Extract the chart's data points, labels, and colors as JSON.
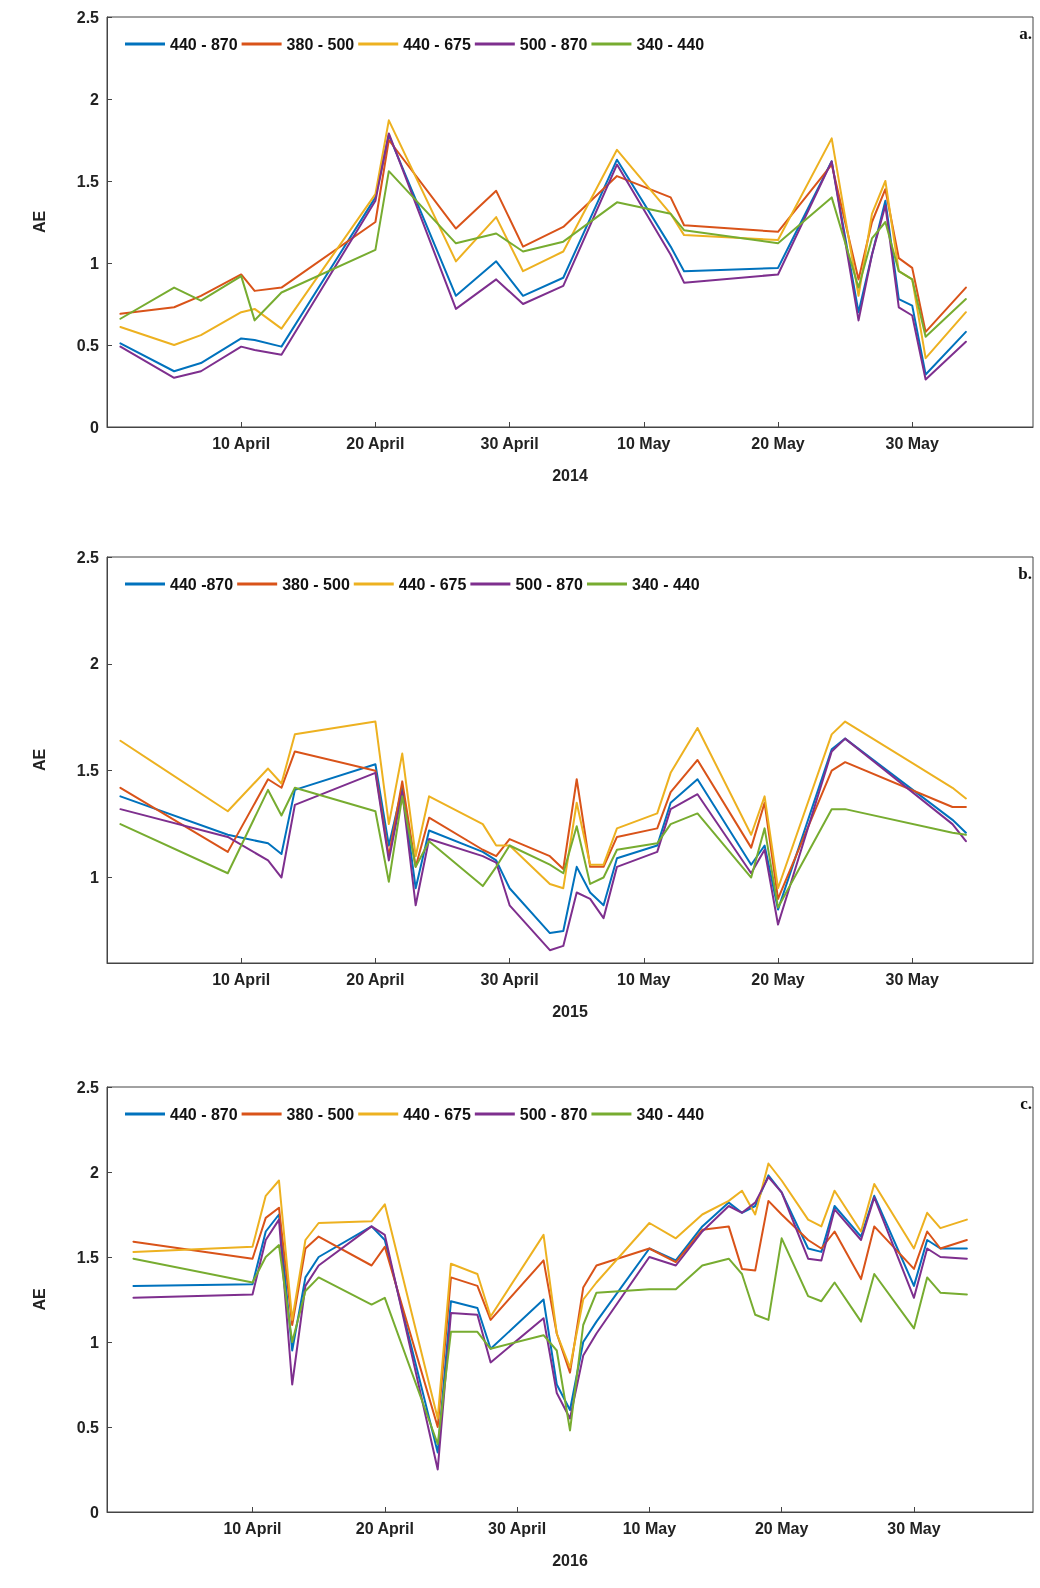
{
  "chart_data": [
    {
      "type": "line",
      "xlabel": "2014",
      "ylabel": "AE",
      "annotations": [
        "a."
      ],
      "legend": "top",
      "grid": false,
      "marker": "none",
      "line_style": "solid",
      "xlim": [
        "2014-03-31",
        "2014-06-08"
      ],
      "xticks": [
        {
          "value": "2014-04-10",
          "label": "10 April"
        },
        {
          "value": "2014-04-20",
          "label": "20 April"
        },
        {
          "value": "2014-04-30",
          "label": "30 April"
        },
        {
          "value": "2014-05-10",
          "label": "10 May"
        },
        {
          "value": "2014-05-20",
          "label": "20 May"
        },
        {
          "value": "2014-05-30",
          "label": "30 May"
        }
      ],
      "ylim": [
        0,
        2.5
      ],
      "yticks": [
        0,
        0.5,
        1,
        1.5,
        2,
        2.5
      ],
      "x": [
        "2014-04-01",
        "2014-04-05",
        "2014-04-07",
        "2014-04-10",
        "2014-04-11",
        "2014-04-13",
        "2014-04-20",
        "2014-04-21",
        "2014-04-26",
        "2014-04-29",
        "2014-05-01",
        "2014-05-04",
        "2014-05-08",
        "2014-05-12",
        "2014-05-13",
        "2014-05-20",
        "2014-05-24",
        "2014-05-26",
        "2014-05-27",
        "2014-05-28",
        "2014-05-29",
        "2014-05-30",
        "2014-05-31",
        "2014-06-03"
      ],
      "series": [
        {
          "name": "440 - 870",
          "color": "#0072bd",
          "values": [
            0.51,
            0.34,
            0.39,
            0.54,
            0.53,
            0.49,
            1.4,
            1.78,
            0.8,
            1.01,
            0.8,
            0.91,
            1.63,
            1.1,
            0.95,
            0.97,
            1.62,
            0.7,
            1.05,
            1.38,
            0.78,
            0.74,
            0.32,
            0.58
          ]
        },
        {
          "name": "380 - 500",
          "color": "#d95319",
          "values": [
            0.69,
            0.73,
            0.8,
            0.93,
            0.83,
            0.85,
            1.25,
            1.75,
            1.21,
            1.44,
            1.1,
            1.22,
            1.53,
            1.4,
            1.23,
            1.19,
            1.6,
            0.9,
            1.25,
            1.45,
            1.03,
            0.97,
            0.58,
            0.85
          ]
        },
        {
          "name": "440 - 675",
          "color": "#edb120",
          "values": [
            0.61,
            0.5,
            0.56,
            0.7,
            0.72,
            0.6,
            1.42,
            1.87,
            1.01,
            1.28,
            0.95,
            1.07,
            1.69,
            1.3,
            1.17,
            1.14,
            1.76,
            0.8,
            1.3,
            1.5,
            0.95,
            0.9,
            0.42,
            0.7
          ]
        },
        {
          "name": "500 - 870",
          "color": "#7e2f8e",
          "values": [
            0.49,
            0.3,
            0.34,
            0.49,
            0.47,
            0.44,
            1.38,
            1.79,
            0.72,
            0.9,
            0.75,
            0.86,
            1.6,
            1.05,
            0.88,
            0.93,
            1.62,
            0.65,
            1.05,
            1.35,
            0.73,
            0.68,
            0.29,
            0.52
          ]
        },
        {
          "name": "340 - 440",
          "color": "#77ac30",
          "values": [
            0.66,
            0.85,
            0.77,
            0.92,
            0.65,
            0.82,
            1.08,
            1.56,
            1.12,
            1.18,
            1.07,
            1.13,
            1.37,
            1.3,
            1.2,
            1.12,
            1.4,
            0.85,
            1.15,
            1.25,
            0.95,
            0.9,
            0.55,
            0.78
          ]
        }
      ]
    },
    {
      "type": "line",
      "xlabel": "2015",
      "ylabel": "AE",
      "annotations": [
        "b."
      ],
      "legend": "top",
      "grid": false,
      "marker": "none",
      "line_style": "solid",
      "xlim": [
        "2015-03-31",
        "2015-06-08"
      ],
      "xticks": [
        {
          "value": "2015-04-10",
          "label": "10 April"
        },
        {
          "value": "2015-04-20",
          "label": "20 April"
        },
        {
          "value": "2015-04-30",
          "label": "30 April"
        },
        {
          "value": "2015-05-10",
          "label": "10 May"
        },
        {
          "value": "2015-05-20",
          "label": "20 May"
        },
        {
          "value": "2015-05-30",
          "label": "30 May"
        }
      ],
      "ylim": [
        0.6,
        2.5
      ],
      "yticks": [
        1,
        1.5,
        2,
        2.5
      ],
      "x": [
        "2015-04-01",
        "2015-04-09",
        "2015-04-12",
        "2015-04-13",
        "2015-04-14",
        "2015-04-20",
        "2015-04-21",
        "2015-04-22",
        "2015-04-23",
        "2015-04-24",
        "2015-04-28",
        "2015-04-29",
        "2015-04-30",
        "2015-05-03",
        "2015-05-04",
        "2015-05-05",
        "2015-05-06",
        "2015-05-07",
        "2015-05-08",
        "2015-05-11",
        "2015-05-12",
        "2015-05-14",
        "2015-05-18",
        "2015-05-19",
        "2015-05-20",
        "2015-05-24",
        "2015-05-25",
        "2015-06-02",
        "2015-06-03"
      ],
      "series": [
        {
          "name": "440 -870",
          "color": "#0072bd",
          "values": [
            1.38,
            1.2,
            1.16,
            1.11,
            1.41,
            1.53,
            1.15,
            1.42,
            0.95,
            1.22,
            1.12,
            1.08,
            0.95,
            0.74,
            0.75,
            1.05,
            0.93,
            0.87,
            1.09,
            1.15,
            1.35,
            1.46,
            1.06,
            1.15,
            0.85,
            1.6,
            1.65,
            1.27,
            1.21
          ]
        },
        {
          "name": "380 - 500",
          "color": "#d95319",
          "values": [
            1.42,
            1.12,
            1.46,
            1.42,
            1.59,
            1.5,
            1.1,
            1.45,
            1.05,
            1.28,
            1.13,
            1.1,
            1.18,
            1.1,
            1.04,
            1.46,
            1.05,
            1.05,
            1.19,
            1.23,
            1.4,
            1.55,
            1.14,
            1.35,
            0.9,
            1.5,
            1.54,
            1.33,
            1.33
          ]
        },
        {
          "name": "440 - 675",
          "color": "#edb120",
          "values": [
            1.64,
            1.31,
            1.51,
            1.44,
            1.67,
            1.73,
            1.25,
            1.58,
            1.1,
            1.38,
            1.25,
            1.15,
            1.15,
            0.97,
            0.95,
            1.35,
            1.06,
            1.06,
            1.23,
            1.3,
            1.49,
            1.7,
            1.2,
            1.38,
            0.95,
            1.67,
            1.73,
            1.42,
            1.37
          ]
        },
        {
          "name": "500 - 870",
          "color": "#7e2f8e",
          "values": [
            1.32,
            1.19,
            1.08,
            1.0,
            1.34,
            1.49,
            1.08,
            1.4,
            0.87,
            1.18,
            1.1,
            1.07,
            0.87,
            0.66,
            0.68,
            0.93,
            0.9,
            0.81,
            1.05,
            1.12,
            1.32,
            1.39,
            1.02,
            1.13,
            0.78,
            1.59,
            1.65,
            1.25,
            1.17
          ]
        },
        {
          "name": "340 - 440",
          "color": "#77ac30",
          "values": [
            1.25,
            1.02,
            1.41,
            1.29,
            1.42,
            1.31,
            0.98,
            1.38,
            1.05,
            1.17,
            0.96,
            1.05,
            1.15,
            1.06,
            1.02,
            1.24,
            0.97,
            1.0,
            1.13,
            1.16,
            1.25,
            1.3,
            1.0,
            1.23,
            0.86,
            1.32,
            1.32,
            1.21,
            1.2
          ]
        }
      ]
    },
    {
      "type": "line",
      "xlabel": "2016",
      "ylabel": "AE",
      "annotations": [
        "c."
      ],
      "legend": "top",
      "grid": false,
      "marker": "none",
      "line_style": "solid",
      "xlim": [
        "2016-03-30",
        "2016-06-08"
      ],
      "xticks": [
        {
          "value": "2016-04-10",
          "label": "10 April"
        },
        {
          "value": "2016-04-20",
          "label": "20 April"
        },
        {
          "value": "2016-04-30",
          "label": "30 April"
        },
        {
          "value": "2016-05-10",
          "label": "10 May"
        },
        {
          "value": "2016-05-20",
          "label": "20 May"
        },
        {
          "value": "2016-05-30",
          "label": "30 May"
        }
      ],
      "ylim": [
        0,
        2.5
      ],
      "yticks": [
        0,
        0.5,
        1,
        1.5,
        2,
        2.5
      ],
      "x": [
        "2016-04-01",
        "2016-04-10",
        "2016-04-11",
        "2016-04-12",
        "2016-04-13",
        "2016-04-14",
        "2016-04-15",
        "2016-04-19",
        "2016-04-20",
        "2016-04-24",
        "2016-04-25",
        "2016-04-27",
        "2016-04-28",
        "2016-05-02",
        "2016-05-03",
        "2016-05-04",
        "2016-05-05",
        "2016-05-06",
        "2016-05-10",
        "2016-05-12",
        "2016-05-14",
        "2016-05-16",
        "2016-05-17",
        "2016-05-18",
        "2016-05-19",
        "2016-05-20",
        "2016-05-22",
        "2016-05-23",
        "2016-05-24",
        "2016-05-26",
        "2016-05-27",
        "2016-05-30",
        "2016-05-31",
        "2016-06-01",
        "2016-06-03"
      ],
      "series": [
        {
          "name": "440 - 870",
          "color": "#0072bd",
          "values": [
            1.33,
            1.34,
            1.65,
            1.75,
            0.95,
            1.38,
            1.5,
            1.68,
            1.6,
            0.35,
            1.24,
            1.2,
            0.96,
            1.25,
            0.75,
            0.6,
            1.0,
            1.12,
            1.55,
            1.48,
            1.68,
            1.82,
            1.76,
            1.8,
            1.98,
            1.88,
            1.55,
            1.53,
            1.8,
            1.62,
            1.86,
            1.33,
            1.6,
            1.55,
            1.55
          ]
        },
        {
          "name": "380 - 500",
          "color": "#d95319",
          "values": [
            1.59,
            1.49,
            1.73,
            1.79,
            1.1,
            1.55,
            1.62,
            1.45,
            1.56,
            0.5,
            1.38,
            1.33,
            1.13,
            1.48,
            1.05,
            0.82,
            1.32,
            1.45,
            1.55,
            1.47,
            1.66,
            1.68,
            1.43,
            1.42,
            1.83,
            1.75,
            1.6,
            1.55,
            1.65,
            1.37,
            1.68,
            1.43,
            1.65,
            1.55,
            1.6
          ]
        },
        {
          "name": "440 - 675",
          "color": "#edb120",
          "values": [
            1.53,
            1.56,
            1.86,
            1.95,
            1.13,
            1.6,
            1.7,
            1.71,
            1.81,
            0.55,
            1.46,
            1.4,
            1.15,
            1.63,
            1.05,
            0.85,
            1.25,
            1.35,
            1.7,
            1.61,
            1.75,
            1.83,
            1.89,
            1.75,
            2.05,
            1.95,
            1.72,
            1.68,
            1.89,
            1.65,
            1.93,
            1.55,
            1.76,
            1.67,
            1.72
          ]
        },
        {
          "name": "500 - 870",
          "color": "#7e2f8e",
          "values": [
            1.26,
            1.28,
            1.6,
            1.72,
            0.75,
            1.33,
            1.45,
            1.68,
            1.63,
            0.25,
            1.17,
            1.16,
            0.88,
            1.14,
            0.7,
            0.55,
            0.92,
            1.05,
            1.5,
            1.45,
            1.65,
            1.8,
            1.76,
            1.82,
            1.97,
            1.88,
            1.49,
            1.48,
            1.78,
            1.6,
            1.85,
            1.26,
            1.55,
            1.5,
            1.49
          ]
        },
        {
          "name": "340 - 440",
          "color": "#77ac30",
          "values": [
            1.49,
            1.35,
            1.5,
            1.57,
            1.0,
            1.3,
            1.38,
            1.22,
            1.26,
            0.4,
            1.06,
            1.06,
            0.96,
            1.04,
            0.95,
            0.48,
            1.1,
            1.29,
            1.31,
            1.31,
            1.45,
            1.49,
            1.4,
            1.16,
            1.13,
            1.61,
            1.27,
            1.24,
            1.35,
            1.12,
            1.4,
            1.08,
            1.38,
            1.29,
            1.28
          ]
        }
      ]
    }
  ]
}
